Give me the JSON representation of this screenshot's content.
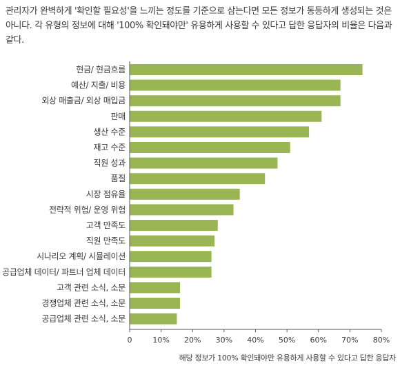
{
  "intro_text": "관리자가 완벽하게 '확인할 필요성'을 느끼는 정도를 기준으로 삼는다면 모든 정보가 동등하게 생성되는 것은 아니다. 각 유형의 정보에 대해 '100% 확인돼야만' 유용하게 사용할 수 있다고 답한 응답자의 비율은 다음과 같다.",
  "colors": {
    "bar": "#9ab654",
    "axis": "#555555"
  },
  "chart_data": {
    "type": "bar",
    "orientation": "horizontal",
    "categories": [
      "현금/ 현금흐름",
      "예산/ 지출/ 비용",
      "외상 매출금/ 외상 매입금",
      "판매",
      "생산 수준",
      "재고 수준",
      "직원 성과",
      "품질",
      "시장 점유율",
      "전략적 위험/ 운영 위험",
      "고객 만족도",
      "직원 만족도",
      "시나리오 계획/ 시뮬레이션",
      "공급업체 데이터/ 파트너 업체 데이터",
      "고객 관련 소식, 소문",
      "경쟁업체 관련 소식, 소문",
      "공급업체 관련 소식, 소문"
    ],
    "values": [
      74,
      67,
      67,
      61,
      57,
      51,
      47,
      43,
      35,
      33,
      28,
      27,
      26,
      26,
      16,
      16,
      15
    ],
    "xticks": [
      "0",
      "10%",
      "20%",
      "30%",
      "40%",
      "50%",
      "60%",
      "70%",
      "80%"
    ],
    "xlim": [
      0,
      80
    ],
    "xlabel": "해당 정보가 100% 확인돼야만 유용하게 사용할 수 있다고 답한 응답자",
    "ylabel": "",
    "title": "",
    "grid": false,
    "legend": "none"
  }
}
